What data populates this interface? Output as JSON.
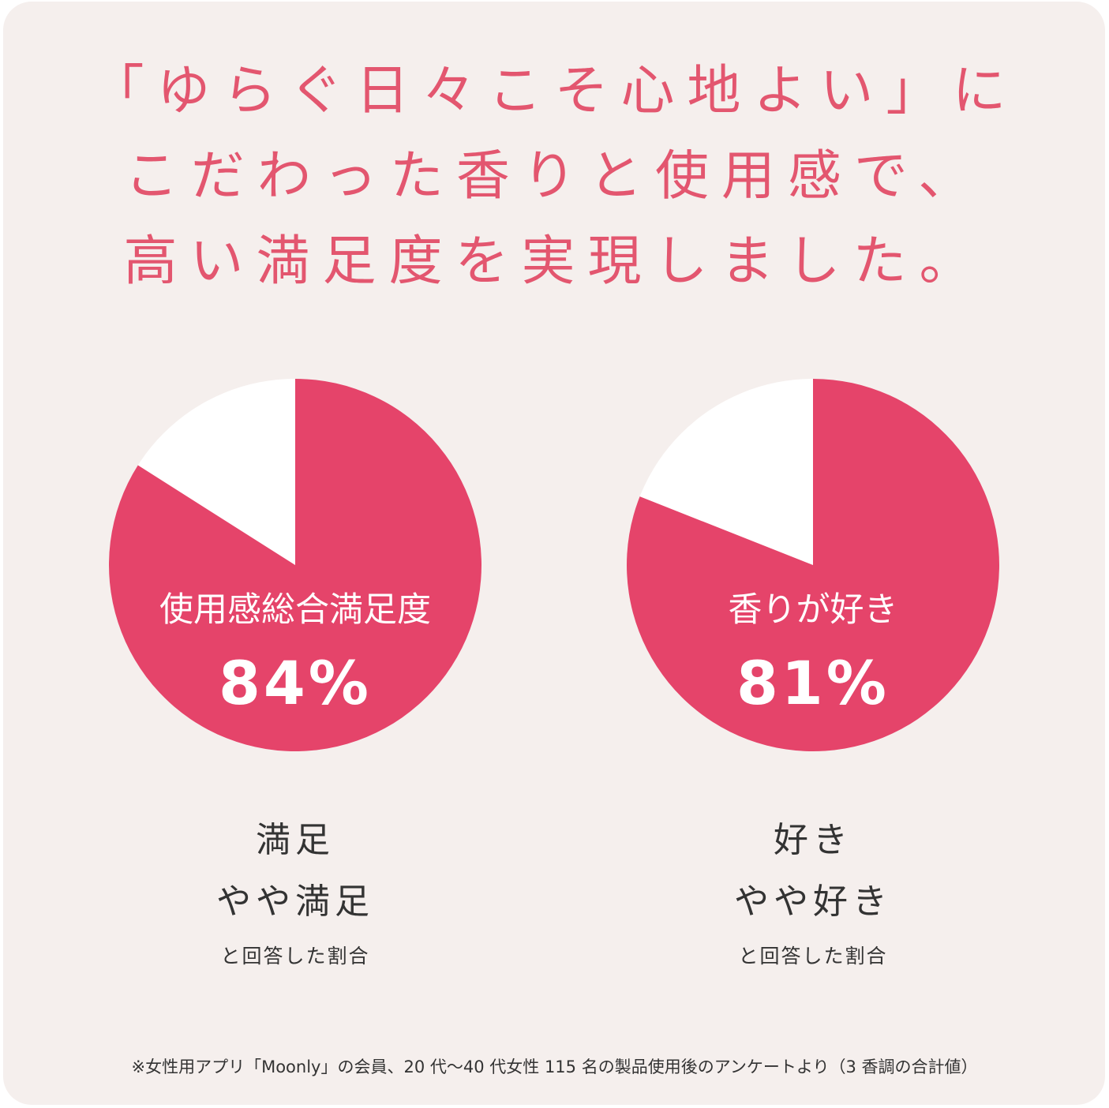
{
  "headline": {
    "line1": "「ゆらぐ日々こそ心地よい」に",
    "line2": "こだわった香りと使用感で、",
    "line3": "高い満足度を実現しました。"
  },
  "colors": {
    "accent": "#e5446a",
    "remainder": "#ffffff",
    "headline": "#e3566f",
    "background": "#f5efed"
  },
  "chart_data": [
    {
      "type": "pie",
      "label": "使用感総合満足度",
      "value_text": "84%",
      "values": [
        84,
        16
      ],
      "caption": {
        "line1": "満足",
        "line2": "やや満足",
        "note": "と回答した割合"
      }
    },
    {
      "type": "pie",
      "label": "香りが好き",
      "value_text": "81%",
      "values": [
        81,
        19
      ],
      "caption": {
        "line1": "好き",
        "line2": "やや好き",
        "note": "と回答した割合"
      }
    }
  ],
  "footnote": "※女性用アプリ「Moonly」の会員、20 代〜40 代女性 115 名の製品使用後のアンケートより（3 香調の合計値）"
}
